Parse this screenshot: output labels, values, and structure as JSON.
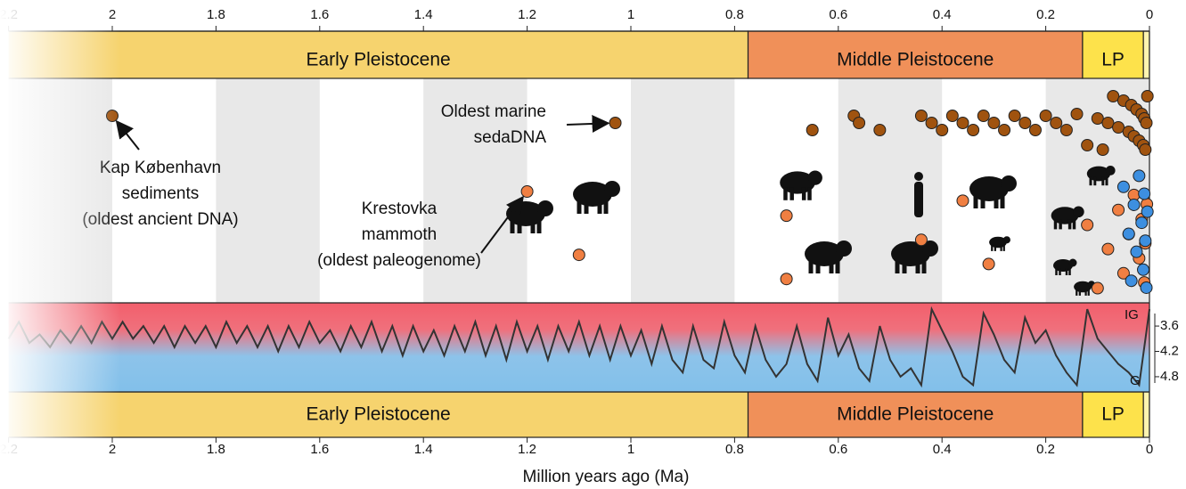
{
  "chart_data": {
    "type": "timeline",
    "x_label": "Million years ago (Ma)",
    "xlim": [
      2.2,
      0.0
    ],
    "xticks": [
      2.2,
      2.0,
      1.8,
      1.6,
      1.4,
      1.2,
      1.0,
      0.8,
      0.6,
      0.4,
      0.2,
      0.0
    ],
    "alternating_bands": true,
    "epochs": [
      {
        "name": "Early Pleistocene",
        "start": 2.58,
        "end": 0.774,
        "color": "#f6d36e"
      },
      {
        "name": "Middle Pleistocene",
        "start": 0.774,
        "end": 0.129,
        "color": "#f09059"
      },
      {
        "name": "LP",
        "start": 0.129,
        "end": 0.0117,
        "color": "#fde24b"
      },
      {
        "start": 0.0117,
        "end": 0.0,
        "color": "#fdf4b0"
      }
    ],
    "series": [
      {
        "color": "#a0530f",
        "x": [
          2.0,
          1.03,
          0.65,
          0.57,
          0.56,
          0.52,
          0.44,
          0.42,
          0.4,
          0.38,
          0.36,
          0.34,
          0.32,
          0.3,
          0.28,
          0.26,
          0.24,
          0.22,
          0.2,
          0.18,
          0.16,
          0.14,
          0.12,
          0.1,
          0.09,
          0.08,
          0.07,
          0.06,
          0.05,
          0.04,
          0.035,
          0.03,
          0.025,
          0.02,
          0.015,
          0.012,
          0.01,
          0.008,
          0.006,
          0.004
        ]
      },
      {
        "color": "#f07f42",
        "x": [
          1.2,
          1.1,
          0.7,
          0.7,
          0.44,
          0.36,
          0.31,
          0.12,
          0.1,
          0.08,
          0.06,
          0.05,
          0.04,
          0.03,
          0.02,
          0.015,
          0.01,
          0.008,
          0.005
        ]
      },
      {
        "color": "#3d8fe0",
        "x": [
          0.05,
          0.04,
          0.035,
          0.03,
          0.025,
          0.02,
          0.015,
          0.012,
          0.01,
          0.008,
          0.006,
          0.004
        ]
      }
    ],
    "annotations": [
      {
        "lines": [
          "Kap København",
          "sediments",
          "(oldest ancient DNA)"
        ]
      },
      {
        "lines": [
          "Oldest marine",
          "sedaDNA"
        ]
      },
      {
        "lines": [
          "Krestovka",
          "mammoth",
          "(oldest paleogenome)"
        ]
      }
    ],
    "climate": {
      "color": "#333333",
      "y2lim": [
        3.05,
        5.16
      ],
      "y2ticks": [
        3.6,
        4.2,
        4.8
      ],
      "top_label": "IG",
      "bottom_label": "G",
      "x": [
        2.2,
        2.18,
        2.16,
        2.14,
        2.12,
        2.1,
        2.08,
        2.06,
        2.04,
        2.02,
        2.0,
        1.98,
        1.96,
        1.94,
        1.92,
        1.9,
        1.88,
        1.86,
        1.84,
        1.82,
        1.8,
        1.78,
        1.76,
        1.74,
        1.72,
        1.7,
        1.68,
        1.66,
        1.64,
        1.62,
        1.6,
        1.58,
        1.56,
        1.54,
        1.52,
        1.5,
        1.48,
        1.46,
        1.44,
        1.42,
        1.4,
        1.38,
        1.36,
        1.34,
        1.32,
        1.3,
        1.28,
        1.26,
        1.24,
        1.22,
        1.2,
        1.18,
        1.16,
        1.14,
        1.12,
        1.1,
        1.08,
        1.06,
        1.04,
        1.02,
        1.0,
        0.98,
        0.96,
        0.94,
        0.92,
        0.9,
        0.88,
        0.86,
        0.84,
        0.82,
        0.8,
        0.78,
        0.76,
        0.74,
        0.72,
        0.7,
        0.68,
        0.66,
        0.64,
        0.62,
        0.6,
        0.58,
        0.56,
        0.54,
        0.52,
        0.5,
        0.48,
        0.46,
        0.44,
        0.42,
        0.4,
        0.38,
        0.36,
        0.34,
        0.32,
        0.3,
        0.28,
        0.26,
        0.24,
        0.22,
        0.2,
        0.18,
        0.16,
        0.14,
        0.12,
        0.1,
        0.08,
        0.06,
        0.04,
        0.02,
        0.0
      ],
      "values": [
        3.9,
        3.5,
        4.0,
        3.8,
        4.1,
        3.7,
        4.0,
        3.6,
        4.0,
        3.5,
        3.9,
        3.5,
        3.9,
        3.6,
        4.0,
        3.6,
        4.1,
        3.6,
        4.0,
        3.6,
        4.1,
        3.5,
        4.0,
        3.6,
        4.1,
        3.6,
        4.2,
        3.6,
        4.1,
        3.5,
        4.0,
        3.7,
        4.2,
        3.6,
        4.1,
        3.5,
        4.2,
        3.6,
        4.3,
        3.6,
        4.2,
        3.7,
        4.3,
        3.6,
        4.2,
        3.5,
        4.3,
        3.6,
        4.4,
        3.5,
        4.2,
        3.6,
        4.4,
        3.6,
        4.2,
        3.5,
        4.3,
        3.6,
        4.4,
        3.6,
        4.3,
        3.7,
        4.5,
        3.6,
        4.4,
        4.7,
        3.6,
        4.4,
        4.6,
        3.5,
        4.3,
        4.7,
        3.6,
        4.4,
        4.8,
        4.5,
        3.6,
        4.5,
        4.9,
        3.4,
        4.3,
        3.8,
        4.6,
        4.9,
        3.6,
        4.4,
        4.8,
        4.6,
        5.0,
        3.2,
        3.7,
        4.2,
        4.8,
        5.0,
        3.3,
        3.8,
        4.4,
        4.7,
        3.4,
        4.0,
        3.7,
        4.3,
        4.7,
        5.0,
        3.2,
        3.9,
        4.2,
        4.5,
        4.7,
        5.0,
        3.2
      ]
    }
  }
}
